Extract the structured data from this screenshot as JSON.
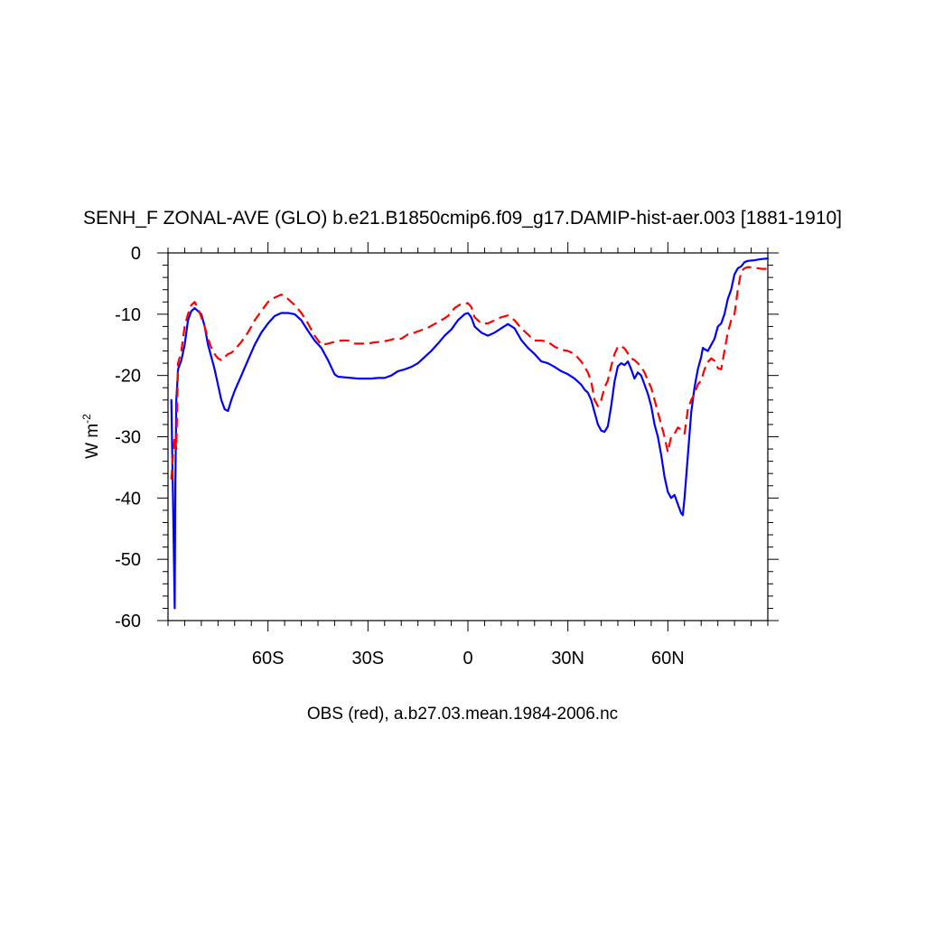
{
  "chart_data": {
    "type": "line",
    "title": "SENH_F ZONAL-AVE (GLO) b.e21.B1850cmip6.f09_g17.DAMIP-hist-aer.003 [1881-1910]",
    "ylabel": "W m",
    "ylabel_exponent": "-2",
    "footer": "OBS (red), a.b27.03.mean.1984-2006.nc",
    "xlim": [
      -90,
      90
    ],
    "ylim": [
      -60,
      0
    ],
    "x_ticks": [
      {
        "value": -60,
        "label": "60S"
      },
      {
        "value": -30,
        "label": "30S"
      },
      {
        "value": 0,
        "label": "0"
      },
      {
        "value": 30,
        "label": "30N"
      },
      {
        "value": 60,
        "label": "60N"
      }
    ],
    "y_ticks": [
      {
        "value": 0,
        "label": "0"
      },
      {
        "value": -10,
        "label": "-10"
      },
      {
        "value": -20,
        "label": "-20"
      },
      {
        "value": -30,
        "label": "-30"
      },
      {
        "value": -40,
        "label": "-40"
      },
      {
        "value": -50,
        "label": "-50"
      },
      {
        "value": -60,
        "label": "-60"
      }
    ],
    "grid": false,
    "series": [
      {
        "color": "#0000ff",
        "style": "solid",
        "points": [
          [
            -89,
            -24
          ],
          [
            -88.5,
            -40
          ],
          [
            -88,
            -58
          ],
          [
            -87.8,
            -38
          ],
          [
            -87.5,
            -24
          ],
          [
            -87,
            -19
          ],
          [
            -86,
            -17.5
          ],
          [
            -85,
            -15
          ],
          [
            -84,
            -11
          ],
          [
            -83,
            -9.5
          ],
          [
            -82,
            -9
          ],
          [
            -81,
            -9.5
          ],
          [
            -80,
            -10
          ],
          [
            -79,
            -12
          ],
          [
            -78,
            -15
          ],
          [
            -77,
            -17
          ],
          [
            -76,
            -19
          ],
          [
            -75,
            -21.5
          ],
          [
            -74,
            -24
          ],
          [
            -73,
            -25.5
          ],
          [
            -72,
            -25.8
          ],
          [
            -71,
            -24
          ],
          [
            -70,
            -22.5
          ],
          [
            -68,
            -20
          ],
          [
            -66,
            -17.5
          ],
          [
            -64,
            -15
          ],
          [
            -62,
            -13
          ],
          [
            -60,
            -11.5
          ],
          [
            -58,
            -10.3
          ],
          [
            -56,
            -9.8
          ],
          [
            -54,
            -9.8
          ],
          [
            -52,
            -10
          ],
          [
            -50,
            -11
          ],
          [
            -48,
            -12.7
          ],
          [
            -46,
            -14.3
          ],
          [
            -44,
            -15.5
          ],
          [
            -42,
            -17.5
          ],
          [
            -40,
            -19.8
          ],
          [
            -39,
            -20.2
          ],
          [
            -37,
            -20.3
          ],
          [
            -35,
            -20.4
          ],
          [
            -33,
            -20.5
          ],
          [
            -31,
            -20.5
          ],
          [
            -29,
            -20.5
          ],
          [
            -27,
            -20.4
          ],
          [
            -25,
            -20.4
          ],
          [
            -23,
            -20
          ],
          [
            -21,
            -19.3
          ],
          [
            -19,
            -19
          ],
          [
            -17,
            -18.6
          ],
          [
            -15,
            -18
          ],
          [
            -13,
            -17
          ],
          [
            -11,
            -16
          ],
          [
            -9,
            -14.8
          ],
          [
            -7,
            -13.5
          ],
          [
            -5,
            -12.5
          ],
          [
            -3,
            -11
          ],
          [
            -2,
            -10.5
          ],
          [
            -1,
            -10
          ],
          [
            0,
            -9.8
          ],
          [
            1,
            -10.5
          ],
          [
            2,
            -12
          ],
          [
            4,
            -13
          ],
          [
            6,
            -13.5
          ],
          [
            8,
            -13
          ],
          [
            10,
            -12.3
          ],
          [
            12,
            -11.6
          ],
          [
            14,
            -12.3
          ],
          [
            16,
            -14.2
          ],
          [
            18,
            -15.5
          ],
          [
            20,
            -16.5
          ],
          [
            22,
            -17.7
          ],
          [
            24,
            -18
          ],
          [
            26,
            -18.6
          ],
          [
            28,
            -19.3
          ],
          [
            30,
            -19.8
          ],
          [
            32,
            -20.5
          ],
          [
            34,
            -21.5
          ],
          [
            35,
            -22.3
          ],
          [
            36,
            -22.8
          ],
          [
            37,
            -24
          ],
          [
            38,
            -26
          ],
          [
            39,
            -28
          ],
          [
            40,
            -29
          ],
          [
            41,
            -29.2
          ],
          [
            42,
            -28.3
          ],
          [
            43,
            -25
          ],
          [
            44,
            -21
          ],
          [
            45,
            -18.5
          ],
          [
            46,
            -18
          ],
          [
            47,
            -18.3
          ],
          [
            48,
            -17.7
          ],
          [
            49,
            -19
          ],
          [
            50,
            -20.5
          ],
          [
            51,
            -19.5
          ],
          [
            52,
            -20
          ],
          [
            53,
            -21.5
          ],
          [
            54,
            -23
          ],
          [
            55,
            -25
          ],
          [
            56,
            -28
          ],
          [
            57,
            -30
          ],
          [
            58,
            -33
          ],
          [
            59,
            -36.5
          ],
          [
            60,
            -39
          ],
          [
            61,
            -40
          ],
          [
            62,
            -39.5
          ],
          [
            63,
            -41
          ],
          [
            64,
            -42.5
          ],
          [
            64.5,
            -42.8
          ],
          [
            65,
            -40
          ],
          [
            66,
            -33
          ],
          [
            67,
            -26
          ],
          [
            68,
            -22
          ],
          [
            69,
            -19
          ],
          [
            70,
            -17
          ],
          [
            70.5,
            -15.5
          ],
          [
            71,
            -15.7
          ],
          [
            72,
            -16
          ],
          [
            73,
            -15
          ],
          [
            74,
            -14
          ],
          [
            75,
            -12
          ],
          [
            76,
            -11.5
          ],
          [
            77,
            -10
          ],
          [
            78,
            -7.5
          ],
          [
            79,
            -6
          ],
          [
            80,
            -3.5
          ],
          [
            81,
            -2.5
          ],
          [
            82,
            -2.2
          ],
          [
            83,
            -1.5
          ],
          [
            84,
            -1.3
          ],
          [
            86,
            -1.2
          ],
          [
            88,
            -1
          ],
          [
            90,
            -0.9
          ]
        ]
      },
      {
        "color": "#ff0000",
        "style": "dashed",
        "points": [
          [
            -89,
            -37
          ],
          [
            -88.5,
            -33
          ],
          [
            -88,
            -30
          ],
          [
            -87.5,
            -32
          ],
          [
            -87,
            -18
          ],
          [
            -86,
            -16
          ],
          [
            -85,
            -12
          ],
          [
            -84,
            -10
          ],
          [
            -83,
            -8.5
          ],
          [
            -82,
            -8
          ],
          [
            -81,
            -9
          ],
          [
            -80,
            -10.5
          ],
          [
            -79,
            -12
          ],
          [
            -78,
            -14
          ],
          [
            -77,
            -15.5
          ],
          [
            -76,
            -16.5
          ],
          [
            -75,
            -17.2
          ],
          [
            -74,
            -17.5
          ],
          [
            -73,
            -17
          ],
          [
            -72,
            -16.5
          ],
          [
            -71,
            -16.3
          ],
          [
            -70,
            -15.8
          ],
          [
            -68,
            -14.5
          ],
          [
            -66,
            -13
          ],
          [
            -64,
            -11
          ],
          [
            -62,
            -9.5
          ],
          [
            -60,
            -8
          ],
          [
            -58,
            -7.3
          ],
          [
            -56,
            -6.8
          ],
          [
            -54,
            -7.5
          ],
          [
            -52,
            -8.5
          ],
          [
            -50,
            -9.8
          ],
          [
            -48,
            -11.5
          ],
          [
            -46,
            -13.5
          ],
          [
            -44,
            -15
          ],
          [
            -42,
            -14.8
          ],
          [
            -40,
            -14.5
          ],
          [
            -38,
            -14.3
          ],
          [
            -36,
            -14.3
          ],
          [
            -34,
            -14.8
          ],
          [
            -32,
            -14.8
          ],
          [
            -30,
            -14.8
          ],
          [
            -28,
            -14.6
          ],
          [
            -26,
            -14.5
          ],
          [
            -24,
            -14.3
          ],
          [
            -22,
            -14
          ],
          [
            -20,
            -14
          ],
          [
            -18,
            -13.3
          ],
          [
            -16,
            -13
          ],
          [
            -14,
            -12.6
          ],
          [
            -12,
            -12.2
          ],
          [
            -10,
            -11.6
          ],
          [
            -8,
            -11
          ],
          [
            -6,
            -10.3
          ],
          [
            -4,
            -9
          ],
          [
            -2,
            -8.3
          ],
          [
            0,
            -8.2
          ],
          [
            1,
            -8.8
          ],
          [
            2,
            -10.5
          ],
          [
            4,
            -11.5
          ],
          [
            6,
            -11.5
          ],
          [
            8,
            -11
          ],
          [
            10,
            -10.5
          ],
          [
            12,
            -10.2
          ],
          [
            14,
            -11
          ],
          [
            16,
            -12.3
          ],
          [
            18,
            -13.3
          ],
          [
            20,
            -14.3
          ],
          [
            22,
            -14.3
          ],
          [
            24,
            -14.5
          ],
          [
            26,
            -15.3
          ],
          [
            28,
            -15.8
          ],
          [
            30,
            -16
          ],
          [
            32,
            -16.5
          ],
          [
            34,
            -17.7
          ],
          [
            36,
            -19.5
          ],
          [
            37,
            -21
          ],
          [
            38,
            -24
          ],
          [
            39,
            -25
          ],
          [
            40,
            -24
          ],
          [
            41,
            -22
          ],
          [
            42,
            -20.8
          ],
          [
            43,
            -18.5
          ],
          [
            44,
            -16.5
          ],
          [
            45,
            -15.3
          ],
          [
            46,
            -15.2
          ],
          [
            47,
            -15.6
          ],
          [
            48,
            -16.4
          ],
          [
            49,
            -17.2
          ],
          [
            50,
            -17.5
          ],
          [
            51,
            -18
          ],
          [
            52,
            -18.6
          ],
          [
            53,
            -19.5
          ],
          [
            54,
            -20.8
          ],
          [
            55,
            -22
          ],
          [
            56,
            -24
          ],
          [
            57,
            -26
          ],
          [
            58,
            -28
          ],
          [
            59,
            -30
          ],
          [
            60,
            -32.5
          ],
          [
            61,
            -30
          ],
          [
            62,
            -29.5
          ],
          [
            63,
            -28.5
          ],
          [
            64,
            -28.8
          ],
          [
            65,
            -29.5
          ],
          [
            66,
            -25.5
          ],
          [
            67,
            -24
          ],
          [
            68,
            -23
          ],
          [
            69,
            -21.5
          ],
          [
            70,
            -20.8
          ],
          [
            71,
            -19
          ],
          [
            72,
            -17.8
          ],
          [
            73,
            -17.2
          ],
          [
            74,
            -17.6
          ],
          [
            75,
            -18.8
          ],
          [
            76,
            -19
          ],
          [
            77,
            -16
          ],
          [
            78,
            -13
          ],
          [
            79,
            -11
          ],
          [
            80,
            -10
          ],
          [
            81,
            -6
          ],
          [
            82,
            -3
          ],
          [
            83,
            -2.5
          ],
          [
            84,
            -2.3
          ],
          [
            86,
            -2.4
          ],
          [
            88,
            -2.6
          ],
          [
            90,
            -2.6
          ]
        ]
      }
    ]
  }
}
